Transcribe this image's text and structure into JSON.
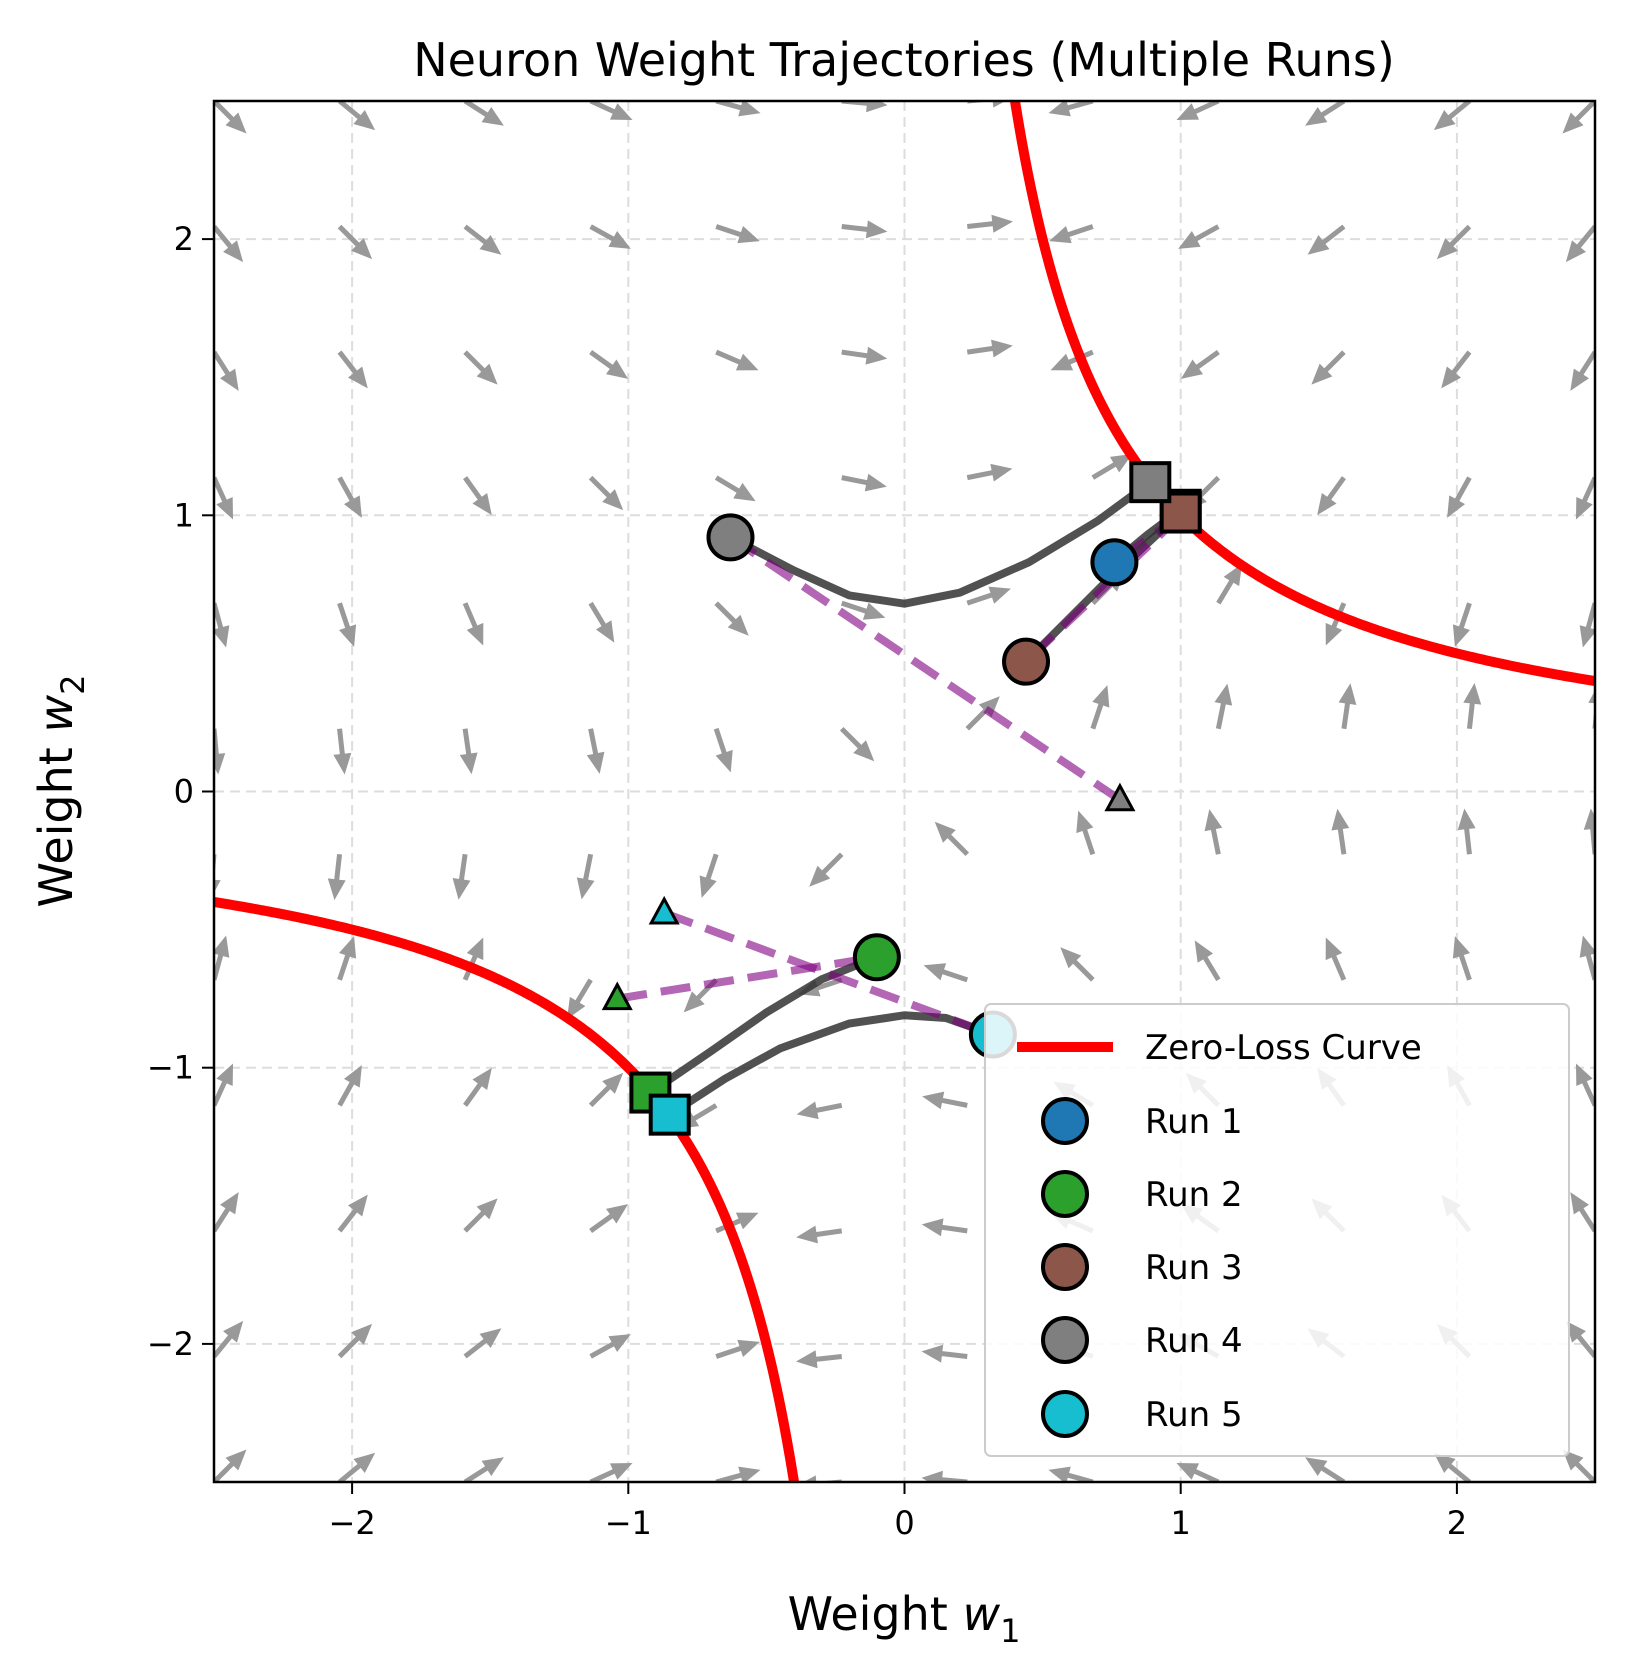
{
  "chart_data": {
    "type": "line",
    "title": "Neuron Weight Trajectories (Multiple Runs)",
    "xlabel_main": "Weight ",
    "xlabel_var": "w",
    "xlabel_sub": "1",
    "ylabel_main": "Weight ",
    "ylabel_var": "w",
    "ylabel_sub": "2",
    "xlim": [
      -2.5,
      2.5
    ],
    "ylim": [
      -2.5,
      2.5
    ],
    "xticks": [
      -2,
      -1,
      0,
      1,
      2
    ],
    "xtick_labels": [
      "−2",
      "−1",
      "0",
      "1",
      "2"
    ],
    "yticks": [
      -2,
      -1,
      0,
      1,
      2
    ],
    "ytick_labels": [
      "−2",
      "−1",
      "0",
      "1",
      "2"
    ],
    "grid": true,
    "vector_field": {
      "grid_n": 12,
      "field": "negative gradient of (w1*w2 - 1)^2, normalized",
      "color": "#999999"
    },
    "zero_loss_curve": {
      "label": "Zero-Loss Curve",
      "equation": "w1*w2 = 1",
      "color": "#ff0000"
    },
    "legend_placement": "lower-right",
    "runs": [
      {
        "name": "Run 1",
        "color": "#1f77b4",
        "start": [
          0.76,
          0.83
        ],
        "end": [
          1.0,
          1.02
        ],
        "init": [
          1.0,
          1.0
        ],
        "path": [
          [
            0.76,
            0.83
          ],
          [
            0.88,
            0.93
          ],
          [
            1.0,
            1.02
          ]
        ]
      },
      {
        "name": "Run 2",
        "color": "#2ca02c",
        "start": [
          -0.1,
          -0.6
        ],
        "end": [
          -0.92,
          -1.09
        ],
        "init": [
          -1.04,
          -0.75
        ],
        "path": [
          [
            -0.1,
            -0.6
          ],
          [
            -0.3,
            -0.68
          ],
          [
            -0.5,
            -0.8
          ],
          [
            -0.7,
            -0.94
          ],
          [
            -0.92,
            -1.09
          ]
        ]
      },
      {
        "name": "Run 3",
        "color": "#8c564b",
        "start": [
          0.44,
          0.47
        ],
        "end": [
          1.0,
          1.01
        ],
        "init": [
          1.0,
          1.0
        ],
        "path": [
          [
            0.44,
            0.47
          ],
          [
            0.72,
            0.75
          ],
          [
            1.0,
            1.01
          ]
        ]
      },
      {
        "name": "Run 4",
        "color": "#7f7f7f",
        "start": [
          -0.63,
          0.92
        ],
        "end": [
          0.89,
          1.12
        ],
        "init": [
          0.78,
          -0.03
        ],
        "path": [
          [
            -0.63,
            0.92
          ],
          [
            -0.4,
            0.8
          ],
          [
            -0.2,
            0.71
          ],
          [
            0,
            0.68
          ],
          [
            0.2,
            0.72
          ],
          [
            0.45,
            0.83
          ],
          [
            0.7,
            0.98
          ],
          [
            0.89,
            1.12
          ]
        ]
      },
      {
        "name": "Run 5",
        "color": "#17becf",
        "start": [
          0.32,
          -0.88
        ],
        "end": [
          -0.85,
          -1.17
        ],
        "init": [
          -0.87,
          -0.44
        ],
        "path": [
          [
            0.32,
            -0.88
          ],
          [
            0.15,
            -0.82
          ],
          [
            0,
            -0.81
          ],
          [
            -0.2,
            -0.84
          ],
          [
            -0.45,
            -0.93
          ],
          [
            -0.65,
            -1.04
          ],
          [
            -0.85,
            -1.17
          ]
        ]
      }
    ]
  }
}
